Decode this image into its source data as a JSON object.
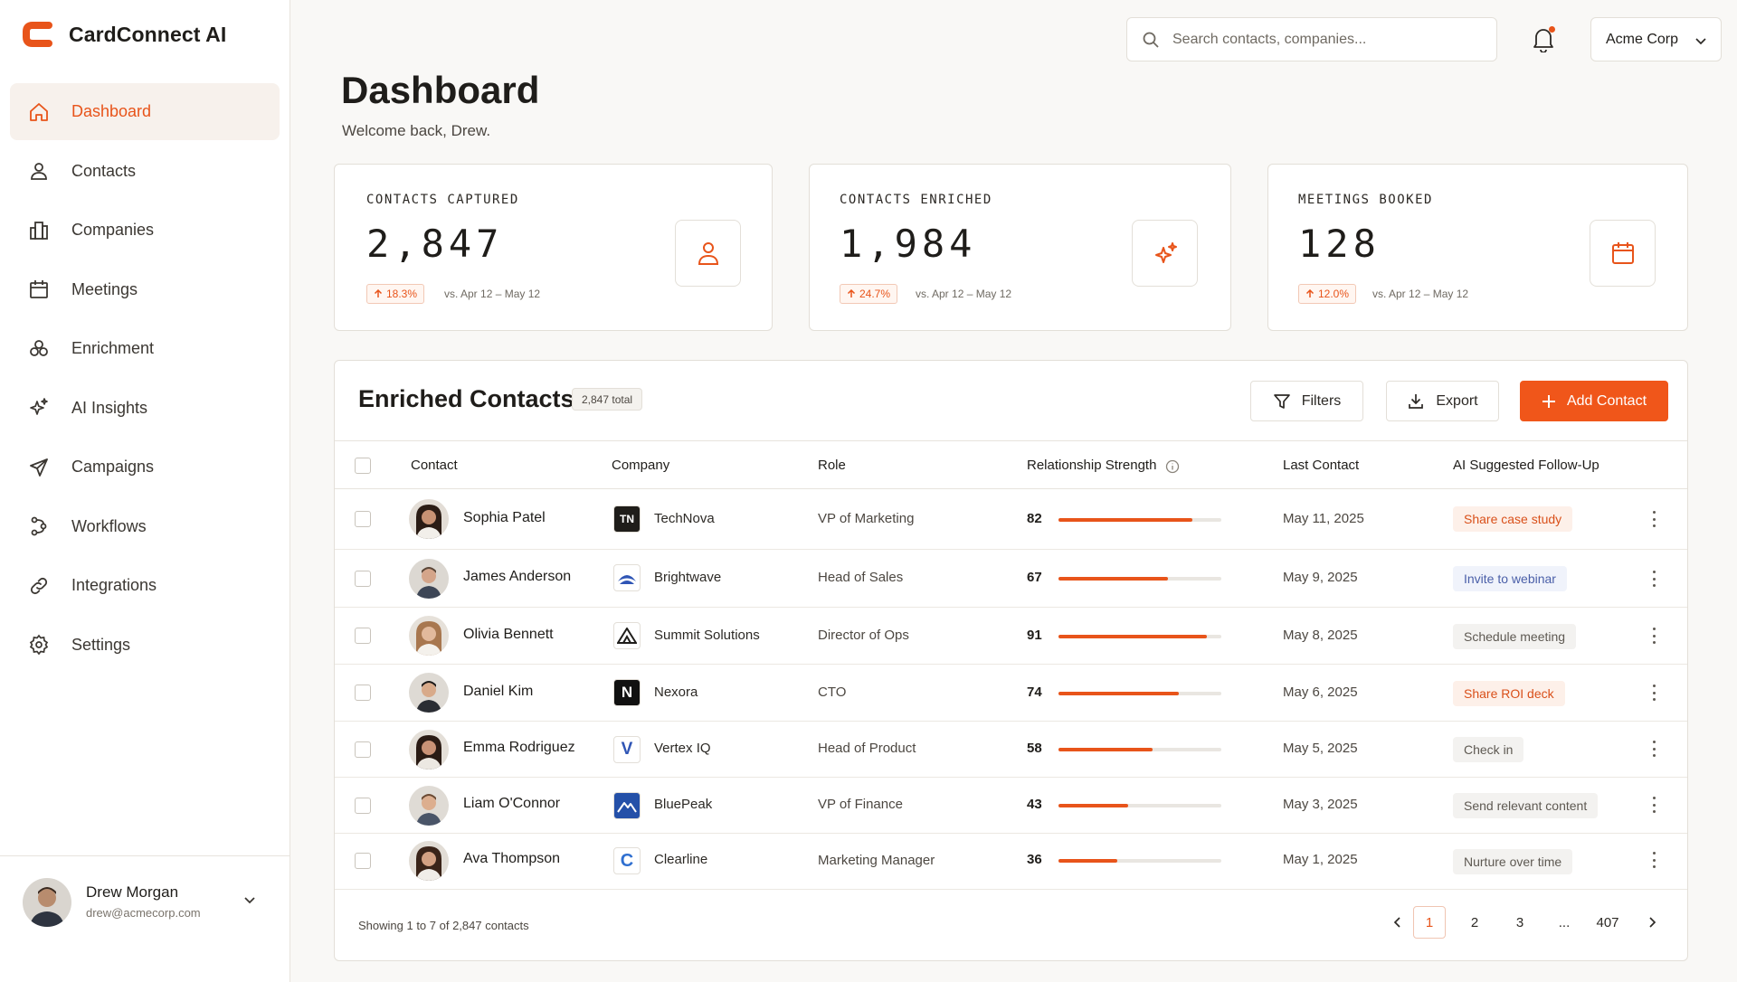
{
  "brand": {
    "name": "CardConnect AI",
    "accent": "#e8541a"
  },
  "sidebar": {
    "items": [
      {
        "label": "Dashboard",
        "icon": "home-icon",
        "active": true
      },
      {
        "label": "Contacts",
        "icon": "person-icon"
      },
      {
        "label": "Companies",
        "icon": "building-icon"
      },
      {
        "label": "Meetings",
        "icon": "calendar-icon"
      },
      {
        "label": "Enrichment",
        "icon": "enrichment-icon"
      },
      {
        "label": "AI Insights",
        "icon": "sparkles-icon"
      },
      {
        "label": "Campaigns",
        "icon": "send-icon"
      },
      {
        "label": "Workflows",
        "icon": "workflow-icon"
      },
      {
        "label": "Integrations",
        "icon": "link-icon"
      },
      {
        "label": "Settings",
        "icon": "gear-icon"
      }
    ],
    "user": {
      "name": "Drew Morgan",
      "email": "drew@acmecorp.com"
    }
  },
  "header": {
    "search_placeholder": "Search contacts, companies...",
    "org": "Acme Corp"
  },
  "page": {
    "title": "Dashboard",
    "subtitle": "Welcome back, Drew."
  },
  "kpis": [
    {
      "title": "CONTACTS CAPTURED",
      "value": "2,847",
      "change": "18.3%",
      "compare": "vs. Apr 12 – May 12",
      "icon": "person-icon"
    },
    {
      "title": "CONTACTS ENRICHED",
      "value": "1,984",
      "change": "24.7%",
      "compare": "vs. Apr 12 – May 12",
      "icon": "sparkles-icon"
    },
    {
      "title": "MEETINGS BOOKED",
      "value": "128",
      "change": "12.0%",
      "compare": "vs. Apr 12 – May 12",
      "icon": "calendar-icon"
    }
  ],
  "table": {
    "title": "Enriched Contacts",
    "total": "2,847 total",
    "filters_label": "Filters",
    "export_label": "Export",
    "add_label": "Add Contact",
    "columns": [
      "Contact",
      "Company",
      "Role",
      "Relationship Strength",
      "Last Contact",
      "AI Suggested Follow-Up"
    ],
    "rows": [
      {
        "name": "Sophia Patel",
        "company": "TechNova",
        "logo": "TN",
        "role": "VP of Marketing",
        "strength": 82,
        "strength_label": "82",
        "last": "May 11, 2025",
        "followup": "Share case study",
        "fu_style": "orange"
      },
      {
        "name": "James Anderson",
        "company": "Brightwave",
        "logo": "wave",
        "role": "Head of Sales",
        "strength": 67,
        "strength_label": "67",
        "last": "May 9, 2025",
        "followup": "Invite to webinar",
        "fu_style": "blue"
      },
      {
        "name": "Olivia Bennett",
        "company": "Summit Solutions",
        "logo": "mountain",
        "role": "Director of Ops",
        "strength": 91,
        "strength_label": "91",
        "last": "May 8, 2025",
        "followup": "Schedule meeting",
        "fu_style": "gray"
      },
      {
        "name": "Daniel Kim",
        "company": "Nexora",
        "logo": "N",
        "role": "CTO",
        "strength": 74,
        "strength_label": "74",
        "last": "May 6, 2025",
        "followup": "Share ROI deck",
        "fu_style": "orange"
      },
      {
        "name": "Emma Rodriguez",
        "company": "Vertex IQ",
        "logo": "V",
        "role": "Head of Product",
        "strength": 58,
        "strength_label": "58",
        "last": "May 5, 2025",
        "followup": "Check in",
        "fu_style": "gray"
      },
      {
        "name": "Liam O'Connor",
        "company": "BluePeak",
        "logo": "peak",
        "role": "VP of Finance",
        "strength": 43,
        "strength_label": "43",
        "last": "May 3, 2025",
        "followup": "Send relevant content",
        "fu_style": "gray"
      },
      {
        "name": "Ava Thompson",
        "company": "Clearline",
        "logo": "C",
        "role": "Marketing Manager",
        "strength": 36,
        "strength_label": "36",
        "last": "May 1, 2025",
        "followup": "Nurture over time",
        "fu_style": "gray"
      }
    ],
    "footer_text": "Showing 1 to 7 of 2,847 contacts",
    "pages": [
      "1",
      "2",
      "3",
      "...",
      "407"
    ]
  }
}
